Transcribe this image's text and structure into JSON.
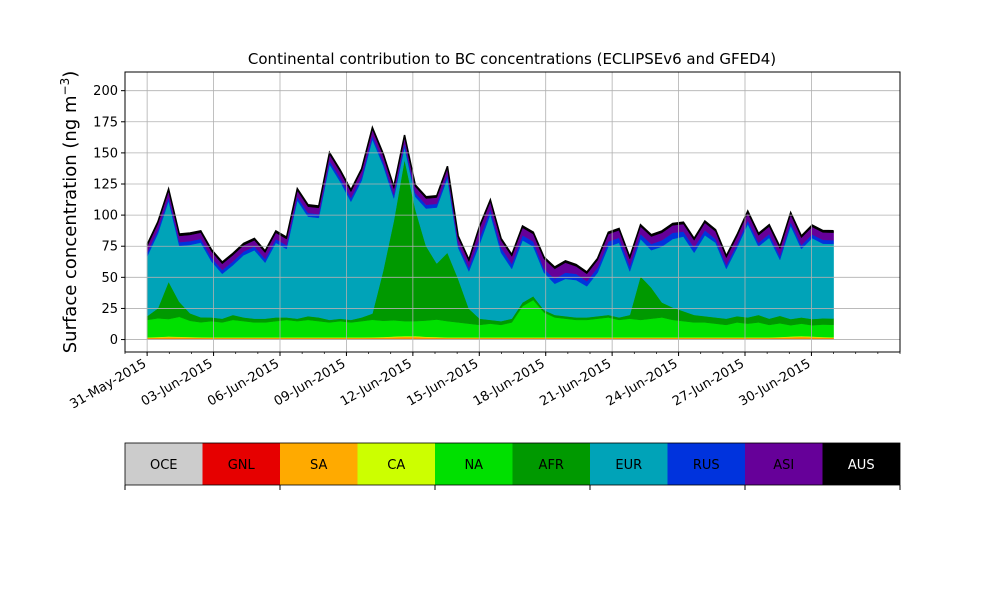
{
  "chart_data": {
    "type": "area",
    "stacked": true,
    "title": "Continental contribution to BC concentrations (ECLIPSEv6 and GFED4)",
    "ylabel_main": "Surface concentration (ng m",
    "ylabel_exp": "−3",
    "ylabel_close": ")",
    "ylim": [
      -10,
      215
    ],
    "yticks": [
      0,
      25,
      50,
      75,
      100,
      125,
      150,
      175,
      200
    ],
    "xlim": [
      "2015-05-30",
      "2015-07-04"
    ],
    "x_range": [
      "2015-05-31",
      "2015-07-01"
    ],
    "xticks": [
      {
        "date": "2015-05-31",
        "label": "31-May-2015"
      },
      {
        "date": "2015-06-03",
        "label": "03-Jun-2015"
      },
      {
        "date": "2015-06-06",
        "label": "06-Jun-2015"
      },
      {
        "date": "2015-06-09",
        "label": "09-Jun-2015"
      },
      {
        "date": "2015-06-12",
        "label": "12-Jun-2015"
      },
      {
        "date": "2015-06-15",
        "label": "15-Jun-2015"
      },
      {
        "date": "2015-06-18",
        "label": "18-Jun-2015"
      },
      {
        "date": "2015-06-21",
        "label": "21-Jun-2015"
      },
      {
        "date": "2015-06-24",
        "label": "24-Jun-2015"
      },
      {
        "date": "2015-06-27",
        "label": "27-Jun-2015"
      },
      {
        "date": "2015-06-30",
        "label": "30-Jun-2015"
      }
    ],
    "grid": true,
    "series": [
      {
        "name": "OCE",
        "color": "#cccccc",
        "values": [
          0.5,
          0.5,
          0.5,
          0.5,
          0.5,
          0.5,
          0.5,
          0.5,
          0.5,
          0.5,
          0.5,
          0.5,
          0.5,
          0.5,
          0.5,
          0.5,
          0.5,
          0.5,
          0.5,
          0.5,
          0.5,
          0.5,
          0.5,
          0.5,
          0.5,
          0.5,
          0.5,
          0.5,
          0.5,
          0.5,
          0.5,
          0.5,
          0.5,
          0.5,
          0.5,
          0.5,
          0.5,
          0.5,
          0.5,
          0.5,
          0.5,
          0.5,
          0.5,
          0.5,
          0.5,
          0.5,
          0.5,
          0.5,
          0.5,
          0.5,
          0.5,
          0.5,
          0.5,
          0.5,
          0.5,
          0.5,
          0.5,
          0.5,
          0.5,
          0.5,
          0.5,
          0.5,
          0.5,
          0.5,
          0.5
        ]
      },
      {
        "name": "GNL",
        "color": "#e60000",
        "values": [
          0.3,
          0.3,
          0.3,
          0.3,
          0.3,
          0.3,
          0.3,
          0.3,
          0.3,
          0.3,
          0.3,
          0.3,
          0.3,
          0.3,
          0.3,
          0.3,
          0.3,
          0.3,
          0.3,
          0.3,
          0.3,
          0.3,
          0.3,
          0.3,
          0.3,
          0.3,
          0.3,
          0.3,
          0.3,
          0.3,
          0.3,
          0.3,
          0.3,
          0.3,
          0.3,
          0.3,
          0.3,
          0.3,
          0.3,
          0.3,
          0.3,
          0.3,
          0.3,
          0.3,
          0.3,
          0.3,
          0.3,
          0.3,
          0.3,
          0.3,
          0.3,
          0.3,
          0.3,
          0.3,
          0.3,
          0.3,
          0.3,
          0.3,
          0.3,
          0.3,
          0.3,
          0.3,
          0.3,
          0.3,
          0.3
        ]
      },
      {
        "name": "SA",
        "color": "#ffaa00",
        "values": [
          0.5,
          0.8,
          1.2,
          1.0,
          0.8,
          0.6,
          0.5,
          0.5,
          0.5,
          0.5,
          0.5,
          0.5,
          0.5,
          0.5,
          0.5,
          0.5,
          0.5,
          0.5,
          0.5,
          0.5,
          0.5,
          0.6,
          0.8,
          1.2,
          1.5,
          1.5,
          1.0,
          0.8,
          0.5,
          0.5,
          0.5,
          0.5,
          0.5,
          0.5,
          0.5,
          0.5,
          0.5,
          0.5,
          0.5,
          0.5,
          0.5,
          0.5,
          0.5,
          0.5,
          0.5,
          0.5,
          0.5,
          0.5,
          0.5,
          0.5,
          0.5,
          0.5,
          0.5,
          0.5,
          0.5,
          0.5,
          0.5,
          0.5,
          0.5,
          0.8,
          1.2,
          1.5,
          1.2,
          0.8,
          0.6
        ]
      },
      {
        "name": "CA",
        "color": "#ccff00",
        "values": [
          0.5,
          0.5,
          0.5,
          0.5,
          0.5,
          0.5,
          0.5,
          0.5,
          0.5,
          0.5,
          0.5,
          0.5,
          0.5,
          0.5,
          0.5,
          0.5,
          0.5,
          0.5,
          0.5,
          0.5,
          0.5,
          0.5,
          0.5,
          0.5,
          0.5,
          0.5,
          0.5,
          0.5,
          0.5,
          0.5,
          0.5,
          0.5,
          0.5,
          0.5,
          0.5,
          0.5,
          0.5,
          0.5,
          0.5,
          0.5,
          0.5,
          0.5,
          0.5,
          0.5,
          0.5,
          0.5,
          0.5,
          0.5,
          0.5,
          0.5,
          0.5,
          0.5,
          0.5,
          0.5,
          0.5,
          0.5,
          0.5,
          0.5,
          0.5,
          0.5,
          0.5,
          0.5,
          0.5,
          0.5,
          0.5
        ]
      },
      {
        "name": "NA",
        "color": "#00e000",
        "values": [
          14,
          15,
          14,
          16,
          13,
          12,
          13,
          12,
          14,
          13,
          12,
          12,
          13,
          14,
          13,
          14,
          13,
          12,
          13,
          12,
          13,
          14,
          13,
          13,
          12,
          12,
          13,
          14,
          13,
          12,
          11,
          10,
          11,
          10,
          12,
          25,
          30,
          20,
          16,
          15,
          14,
          14,
          15,
          16,
          14,
          15,
          14,
          15,
          16,
          14,
          13,
          12,
          12,
          11,
          10,
          12,
          11,
          12,
          10,
          11,
          9,
          10,
          9,
          10,
          10
        ]
      },
      {
        "name": "AFR",
        "color": "#009900",
        "values": [
          3,
          8,
          30,
          12,
          6,
          4,
          3,
          3,
          4,
          3,
          3,
          3,
          3,
          2,
          2,
          3,
          3,
          2,
          2,
          2,
          3,
          5,
          40,
          80,
          130,
          90,
          60,
          45,
          55,
          35,
          12,
          5,
          3,
          3,
          3,
          3,
          3,
          2,
          2,
          2,
          2,
          2,
          2,
          2,
          2,
          3,
          35,
          25,
          12,
          10,
          8,
          6,
          5,
          5,
          5,
          5,
          5,
          6,
          5,
          6,
          5,
          5,
          5,
          5,
          5
        ]
      },
      {
        "name": "EUR",
        "color": "#00a3b8",
        "values": [
          48,
          60,
          65,
          45,
          55,
          60,
          45,
          36,
          40,
          50,
          55,
          45,
          60,
          55,
          95,
          80,
          80,
          125,
          110,
          95,
          110,
          140,
          85,
          18,
          10,
          10,
          30,
          45,
          60,
          25,
          30,
          60,
          85,
          55,
          40,
          50,
          40,
          30,
          25,
          30,
          30,
          25,
          35,
          55,
          60,
          35,
          30,
          30,
          45,
          55,
          60,
          50,
          65,
          60,
          40,
          55,
          75,
          55,
          65,
          45,
          75,
          55,
          65,
          60,
          60
        ]
      },
      {
        "name": "RUS",
        "color": "#0033dd",
        "values": [
          3,
          3,
          3,
          3,
          3,
          3,
          3,
          3,
          3,
          3,
          3,
          3,
          3,
          3,
          3,
          3,
          3,
          3,
          3,
          3,
          3,
          3,
          3,
          3,
          3,
          3,
          3,
          3,
          3,
          3,
          3,
          5,
          4,
          4,
          4,
          4,
          4,
          3,
          4,
          5,
          5,
          4,
          4,
          4,
          4,
          4,
          4,
          5,
          5,
          5,
          4,
          4,
          4,
          3,
          3,
          3,
          3,
          3,
          3,
          3,
          3,
          3,
          3,
          3,
          3
        ]
      },
      {
        "name": "ASI",
        "color": "#660099",
        "values": [
          5,
          5,
          5,
          5,
          5,
          5,
          5,
          5,
          5,
          5,
          5,
          5,
          5,
          5,
          5,
          5,
          5,
          5,
          5,
          5,
          5,
          5,
          5,
          5,
          5,
          5,
          5,
          5,
          5,
          5,
          5,
          8,
          6,
          6,
          6,
          6,
          6,
          8,
          8,
          8,
          6,
          6,
          6,
          6,
          6,
          6,
          6,
          6,
          6,
          6,
          6,
          6,
          6,
          6,
          6,
          6,
          6,
          6,
          6,
          6,
          6,
          6,
          6,
          6,
          6
        ]
      },
      {
        "name": "AUS",
        "color": "#000000",
        "values": [
          1.5,
          1.5,
          1.5,
          1.5,
          1.5,
          1.5,
          1.5,
          1.5,
          1.5,
          1.5,
          1.5,
          1.5,
          1.5,
          1.5,
          1.5,
          1.5,
          1.5,
          1.5,
          1.5,
          1.5,
          1.5,
          1.5,
          1.5,
          1.5,
          1.5,
          1.5,
          1.5,
          1.5,
          1.5,
          1.5,
          1.5,
          1.5,
          1.5,
          1.5,
          1.5,
          1.5,
          1.5,
          1.5,
          1.5,
          1.5,
          1.5,
          1.5,
          1.5,
          1.5,
          1.5,
          1.5,
          1.5,
          1.5,
          1.5,
          1.5,
          1.5,
          1.5,
          1.5,
          1.5,
          1.5,
          1.5,
          1.5,
          1.5,
          1.5,
          1.5,
          1.5,
          1.5,
          1.5,
          1.5,
          1.5
        ]
      }
    ],
    "legend": {
      "placement": "bottom colorbar",
      "labels": [
        "OCE",
        "GNL",
        "SA",
        "CA",
        "NA",
        "AFR",
        "EUR",
        "RUS",
        "ASI",
        "AUS"
      ]
    }
  }
}
